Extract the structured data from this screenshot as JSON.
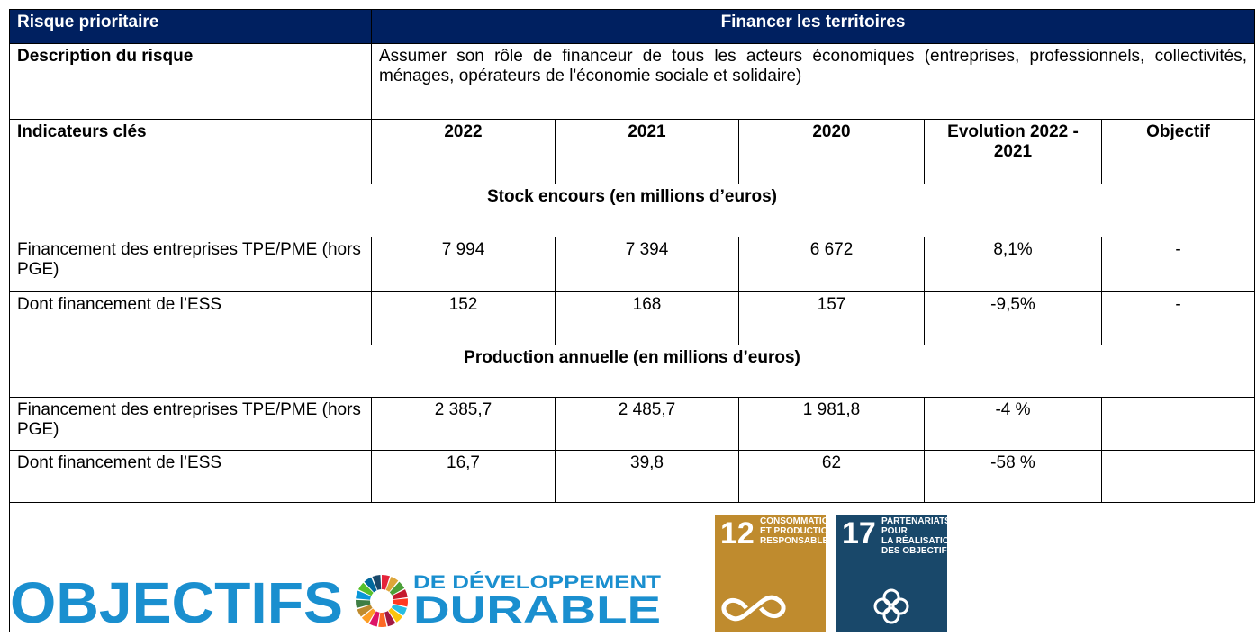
{
  "header": {
    "label": "Risque prioritaire",
    "title": "Financer les territoires"
  },
  "description": {
    "label": "Description du risque",
    "text": "Assumer son rôle de financeur de tous les acteurs économiques (entreprises, professionnels, collectivités, ménages, opérateurs de l'économie sociale et solidaire)"
  },
  "table": {
    "columns": [
      "Indicateurs clés",
      "2022",
      "2021",
      "2020",
      "Evolution 2022 - 2021",
      "Objectif"
    ],
    "sections": [
      {
        "title": "Stock encours (en millions d’euros)",
        "rows": [
          [
            "Financement des entreprises TPE/PME (hors PGE)",
            "7 994",
            "7 394",
            "6 672",
            "8,1%",
            "-"
          ],
          [
            "Dont financement de l’ESS",
            "152",
            "168",
            "157",
            "-9,5%",
            "-"
          ]
        ]
      },
      {
        "title": "Production annuelle (en millions d’euros)",
        "rows": [
          [
            "Financement des entreprises TPE/PME (hors PGE)",
            "2 385,7",
            "2 485,7",
            "1 981,8",
            "-4 %",
            ""
          ],
          [
            "Dont financement de l’ESS",
            "16,7",
            "39,8",
            "62",
            "-58 %",
            ""
          ]
        ]
      }
    ]
  },
  "logo": {
    "word": "OBJECTIFS",
    "line1": "DE DÉVELOPPEMENT",
    "line2": "DURABLE"
  },
  "goals": [
    {
      "number": "12",
      "lines": [
        "CONSOMMATION",
        "ET PRODUCTION",
        "RESPONSABLES"
      ]
    },
    {
      "number": "17",
      "lines": [
        "PARTENARIATS",
        "POUR",
        "LA RÉALISATION",
        "DES OBJECTIFS"
      ]
    }
  ]
}
